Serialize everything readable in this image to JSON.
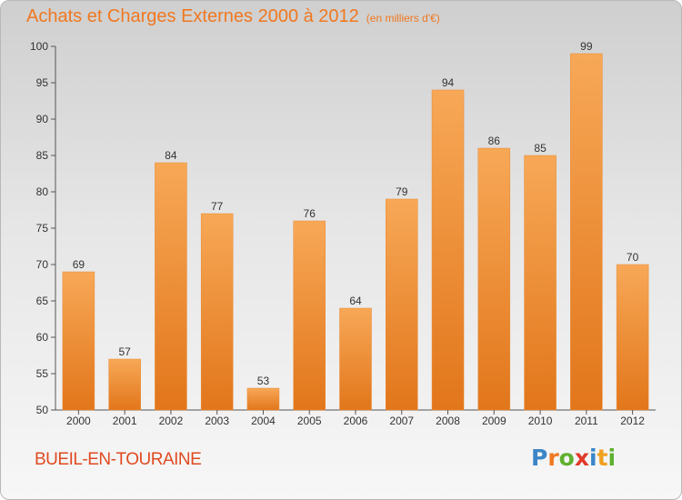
{
  "chart_data": {
    "type": "bar",
    "title": "Achats et Charges Externes 2000 à 2012",
    "unit": "(en milliers d'€)",
    "categories": [
      "2000",
      "2001",
      "2002",
      "2003",
      "2004",
      "2005",
      "2006",
      "2007",
      "2008",
      "2009",
      "2010",
      "2011",
      "2012"
    ],
    "values": [
      69,
      57,
      84,
      77,
      53,
      76,
      64,
      79,
      94,
      86,
      85,
      99,
      70
    ],
    "ylim": [
      50,
      100
    ],
    "yticks": [
      50,
      55,
      60,
      65,
      70,
      75,
      80,
      85,
      90,
      95,
      100
    ],
    "grid": false,
    "bar_color": "#f08a2c",
    "bar_color_top": "#f7a857",
    "bar_color_bottom": "#e2761b"
  },
  "place": "BUEIL-EN-TOURAINE",
  "logo": {
    "text": "Proxiti",
    "letters": [
      {
        "char": "P",
        "color": "#3a86c8"
      },
      {
        "char": "r",
        "color": "#f07820"
      },
      {
        "char": "o",
        "color": "#60b030"
      },
      {
        "char": "x",
        "color": "#e03a2a"
      },
      {
        "char": "i",
        "color": "#3a86c8"
      },
      {
        "char": "t",
        "color": "#f0a020"
      },
      {
        "char": "i",
        "color": "#60b030"
      }
    ]
  }
}
